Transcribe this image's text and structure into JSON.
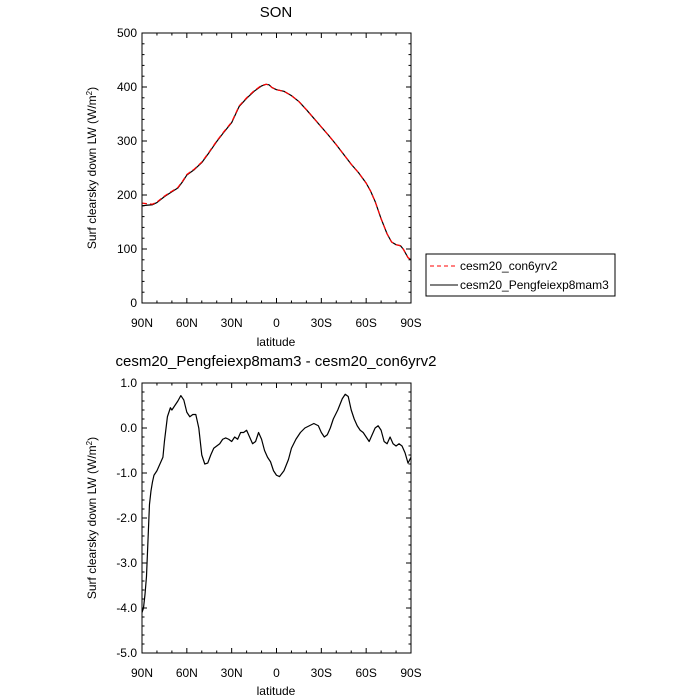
{
  "chart_data": [
    {
      "type": "line",
      "title": "SON",
      "xlabel": "latitude",
      "ylabel_main": "Surf clearsky down LW (W/m",
      "ylabel_sup": "2",
      "ylabel_tail": ")",
      "xlim": [
        90,
        -90
      ],
      "ylim": [
        0,
        500
      ],
      "x_ticks": [
        90,
        60,
        30,
        0,
        -30,
        -60,
        -90
      ],
      "x_tick_labels": [
        "90N",
        "60N",
        "30N",
        "0",
        "30S",
        "60S",
        "90S"
      ],
      "y_ticks": [
        0,
        100,
        200,
        300,
        400,
        500
      ],
      "y_tick_labels": [
        "0",
        "100",
        "200",
        "300",
        "400",
        "500"
      ],
      "legend_position": "right",
      "series": [
        {
          "name": "cesm20_con6yrv2",
          "color": "#ff0000",
          "dash": "dashed",
          "points": [
            [
              90,
              185
            ],
            [
              87,
              184
            ],
            [
              83,
              183
            ],
            [
              80,
              187
            ],
            [
              75,
              198
            ],
            [
              70,
              207
            ],
            [
              66,
              214
            ],
            [
              63,
              225
            ],
            [
              60,
              238
            ],
            [
              55,
              248
            ],
            [
              50,
              261
            ],
            [
              45,
              280
            ],
            [
              40,
              300
            ],
            [
              35,
              318
            ],
            [
              30,
              335
            ],
            [
              25,
              365
            ],
            [
              20,
              380
            ],
            [
              15,
              393
            ],
            [
              10,
              403
            ],
            [
              7,
              405
            ],
            [
              5,
              404
            ],
            [
              3,
              399
            ],
            [
              0,
              395
            ],
            [
              -5,
              392
            ],
            [
              -10,
              384
            ],
            [
              -15,
              373
            ],
            [
              -20,
              358
            ],
            [
              -25,
              342
            ],
            [
              -30,
              326
            ],
            [
              -35,
              310
            ],
            [
              -40,
              293
            ],
            [
              -45,
              275
            ],
            [
              -50,
              257
            ],
            [
              -55,
              241
            ],
            [
              -60,
              222
            ],
            [
              -63,
              207
            ],
            [
              -66,
              188
            ],
            [
              -70,
              156
            ],
            [
              -74,
              128
            ],
            [
              -77,
              113
            ],
            [
              -80,
              108
            ],
            [
              -83,
              106
            ],
            [
              -85,
              99
            ],
            [
              -88,
              84
            ],
            [
              -90,
              80
            ]
          ]
        },
        {
          "name": "cesm20_Pengfeiexp8mam3",
          "color": "#000000",
          "dash": "solid",
          "points": [
            [
              90,
              180
            ],
            [
              87,
              181
            ],
            [
              83,
              182
            ],
            [
              80,
              186
            ],
            [
              75,
              197
            ],
            [
              70,
              206
            ],
            [
              66,
              213
            ],
            [
              63,
              224
            ],
            [
              60,
              237
            ],
            [
              55,
              247
            ],
            [
              50,
              260
            ],
            [
              45,
              279
            ],
            [
              40,
              299
            ],
            [
              35,
              317
            ],
            [
              30,
              334
            ],
            [
              25,
              364
            ],
            [
              20,
              379
            ],
            [
              15,
              392
            ],
            [
              10,
              402
            ],
            [
              7,
              405
            ],
            [
              5,
              404
            ],
            [
              3,
              399
            ],
            [
              0,
              395
            ],
            [
              -5,
              392
            ],
            [
              -10,
              384
            ],
            [
              -15,
              373
            ],
            [
              -20,
              358
            ],
            [
              -25,
              342
            ],
            [
              -30,
              326
            ],
            [
              -35,
              310
            ],
            [
              -40,
              293
            ],
            [
              -45,
              275
            ],
            [
              -50,
              257
            ],
            [
              -55,
              241
            ],
            [
              -60,
              222
            ],
            [
              -63,
              207
            ],
            [
              -66,
              188
            ],
            [
              -70,
              156
            ],
            [
              -74,
              128
            ],
            [
              -77,
              113
            ],
            [
              -80,
              108
            ],
            [
              -83,
              106
            ],
            [
              -85,
              99
            ],
            [
              -88,
              84
            ],
            [
              -90,
              80
            ]
          ]
        }
      ]
    },
    {
      "type": "line",
      "title": "cesm20_Pengfeiexp8mam3 - cesm20_con6yrv2",
      "xlabel": "latitude",
      "ylabel_main": "Surf clearsky down LW (W/m",
      "ylabel_sup": "2",
      "ylabel_tail": ")",
      "xlim": [
        90,
        -90
      ],
      "ylim": [
        -5,
        1
      ],
      "x_ticks": [
        90,
        60,
        30,
        0,
        -30,
        -60,
        -90
      ],
      "x_tick_labels": [
        "90N",
        "60N",
        "30N",
        "0",
        "30S",
        "60S",
        "90S"
      ],
      "y_ticks": [
        -5,
        -4,
        -3,
        -2,
        -1,
        0,
        1
      ],
      "y_tick_labels": [
        "-5.0",
        "-4.0",
        "-3.0",
        "-2.0",
        "-1.0",
        "0.0",
        "1.0"
      ],
      "series": [
        {
          "name": "",
          "color": "#000000",
          "dash": "solid",
          "points": [
            [
              90,
              -4.1
            ],
            [
              89,
              -4.0
            ],
            [
              88,
              -3.7
            ],
            [
              87,
              -3.3
            ],
            [
              86,
              -2.5
            ],
            [
              85,
              -1.7
            ],
            [
              84,
              -1.4
            ],
            [
              83,
              -1.2
            ],
            [
              82,
              -1.05
            ],
            [
              80,
              -0.95
            ],
            [
              78,
              -0.8
            ],
            [
              76,
              -0.65
            ],
            [
              75,
              -0.3
            ],
            [
              73,
              0.25
            ],
            [
              71,
              0.45
            ],
            [
              70,
              0.4
            ],
            [
              68,
              0.5
            ],
            [
              66,
              0.6
            ],
            [
              64,
              0.72
            ],
            [
              62,
              0.62
            ],
            [
              60,
              0.35
            ],
            [
              58,
              0.25
            ],
            [
              56,
              0.3
            ],
            [
              54,
              0.3
            ],
            [
              52,
              0.0
            ],
            [
              50,
              -0.6
            ],
            [
              48,
              -0.8
            ],
            [
              46,
              -0.78
            ],
            [
              44,
              -0.6
            ],
            [
              42,
              -0.45
            ],
            [
              40,
              -0.4
            ],
            [
              38,
              -0.35
            ],
            [
              36,
              -0.25
            ],
            [
              34,
              -0.22
            ],
            [
              32,
              -0.25
            ],
            [
              30,
              -0.3
            ],
            [
              28,
              -0.2
            ],
            [
              26,
              -0.25
            ],
            [
              24,
              -0.1
            ],
            [
              22,
              -0.1
            ],
            [
              20,
              -0.05
            ],
            [
              18,
              -0.2
            ],
            [
              16,
              -0.35
            ],
            [
              14,
              -0.3
            ],
            [
              12,
              -0.1
            ],
            [
              10,
              -0.25
            ],
            [
              8,
              -0.5
            ],
            [
              6,
              -0.65
            ],
            [
              4,
              -0.75
            ],
            [
              2,
              -0.95
            ],
            [
              0,
              -1.05
            ],
            [
              -2,
              -1.08
            ],
            [
              -5,
              -0.95
            ],
            [
              -8,
              -0.7
            ],
            [
              -10,
              -0.45
            ],
            [
              -13,
              -0.25
            ],
            [
              -16,
              -0.1
            ],
            [
              -19,
              0.0
            ],
            [
              -22,
              0.05
            ],
            [
              -25,
              0.1
            ],
            [
              -28,
              0.05
            ],
            [
              -30,
              -0.1
            ],
            [
              -32,
              -0.2
            ],
            [
              -34,
              -0.15
            ],
            [
              -36,
              0.0
            ],
            [
              -38,
              0.2
            ],
            [
              -41,
              0.4
            ],
            [
              -44,
              0.65
            ],
            [
              -46,
              0.75
            ],
            [
              -48,
              0.7
            ],
            [
              -50,
              0.4
            ],
            [
              -52,
              0.2
            ],
            [
              -54,
              0.05
            ],
            [
              -56,
              -0.05
            ],
            [
              -58,
              -0.1
            ],
            [
              -60,
              -0.2
            ],
            [
              -62,
              -0.3
            ],
            [
              -64,
              -0.15
            ],
            [
              -66,
              0.0
            ],
            [
              -68,
              0.05
            ],
            [
              -70,
              -0.05
            ],
            [
              -72,
              -0.3
            ],
            [
              -74,
              -0.35
            ],
            [
              -76,
              -0.2
            ],
            [
              -78,
              -0.35
            ],
            [
              -80,
              -0.4
            ],
            [
              -82,
              -0.35
            ],
            [
              -84,
              -0.4
            ],
            [
              -86,
              -0.55
            ],
            [
              -88,
              -0.78
            ],
            [
              -90,
              -0.65
            ]
          ]
        }
      ]
    }
  ]
}
